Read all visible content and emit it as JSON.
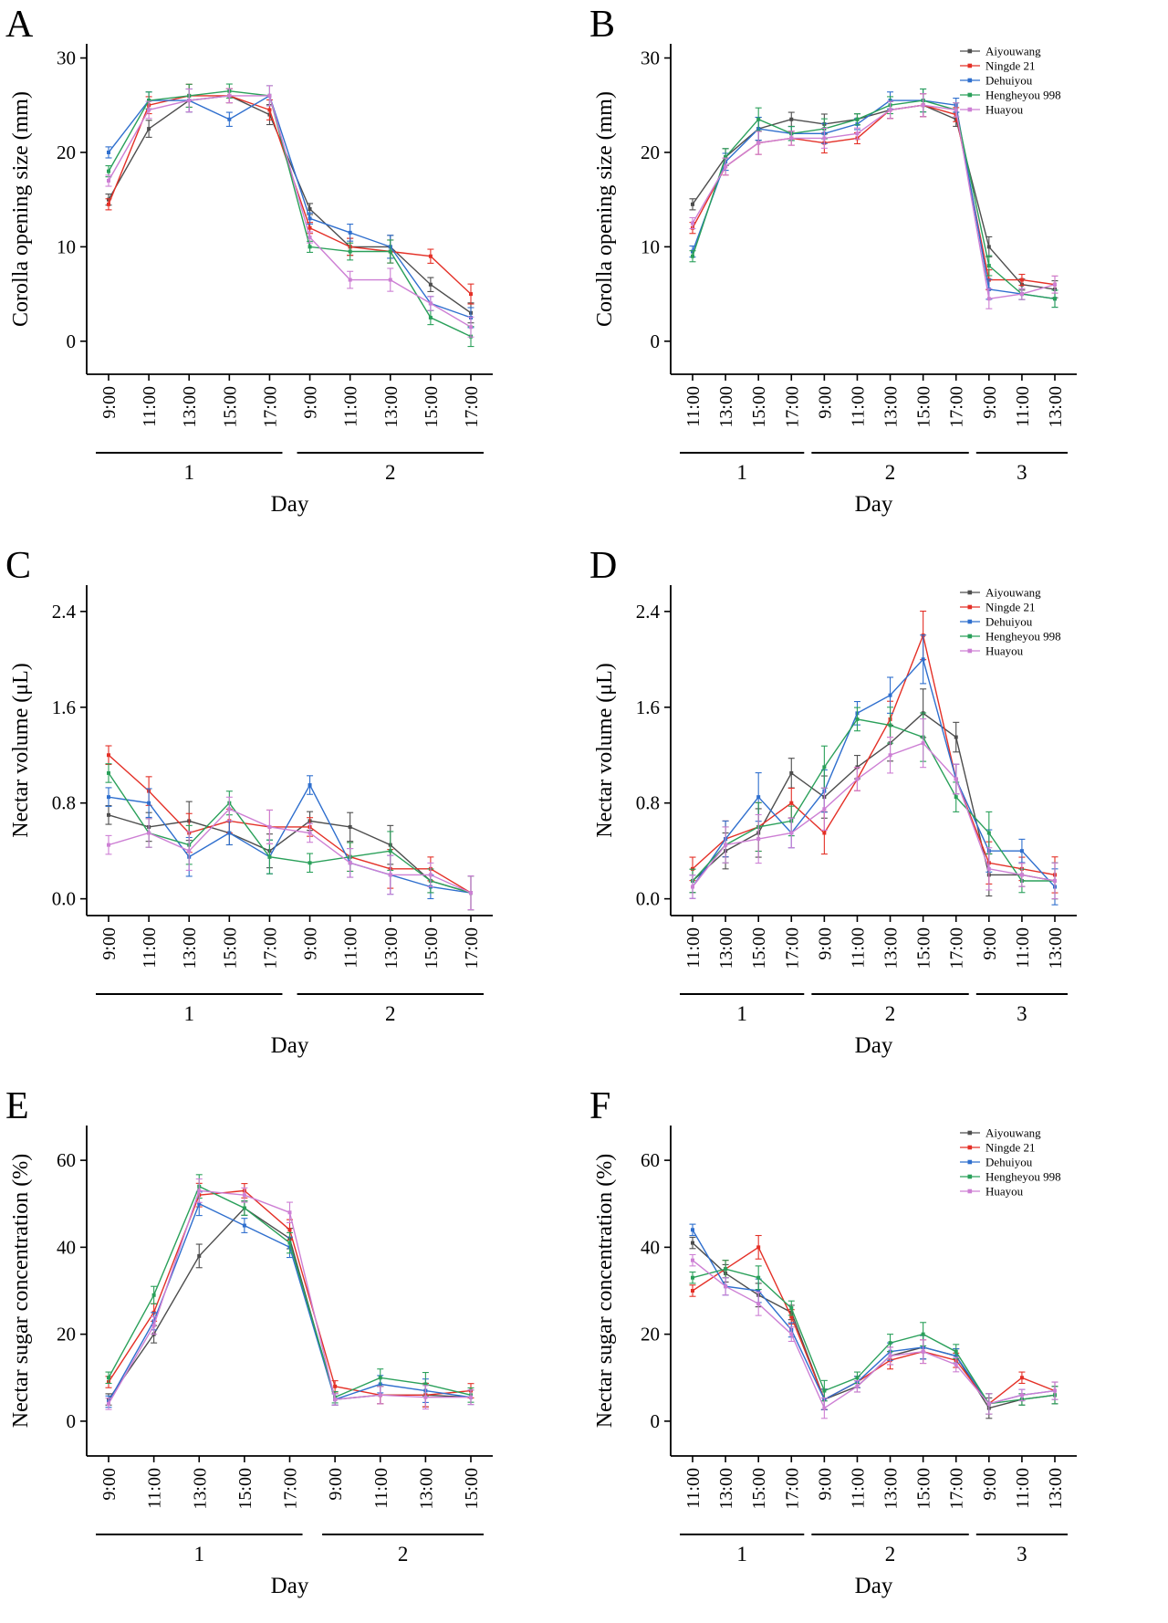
{
  "page": {
    "background": "#ffffff"
  },
  "colors": {
    "axis": "#000000",
    "series": {
      "Aiyouwang": "#4d4d4d",
      "Ningde 21": "#e43027",
      "Dehuiyou": "#2f6fce",
      "Hengheyou 998": "#2aa05a",
      "Huayou": "#cd7fd4"
    }
  },
  "legend_entries": [
    "Aiyouwang",
    "Ningde 21",
    "Dehuiyou",
    "Hengheyou 998",
    "Huayou"
  ],
  "chart_data": [
    {
      "type": "line",
      "panel_label": "A",
      "ylabel": "Corolla opening size (mm)",
      "xlabel": "Day",
      "yticks": [
        "0",
        "10",
        "20",
        "30"
      ],
      "ytick_values": [
        0,
        10,
        20,
        30
      ],
      "ylim": [
        -3.5,
        31.5
      ],
      "x_tick_labels": [
        "9:00",
        "11:00",
        "13:00",
        "15:00",
        "17:00",
        "9:00",
        "11:00",
        "13:00",
        "15:00",
        "17:00"
      ],
      "day_groups": [
        {
          "label": "1",
          "start": 0,
          "end": 4
        },
        {
          "label": "2",
          "start": 5,
          "end": 9
        }
      ],
      "legend": {
        "visible": false,
        "position": "top-right"
      },
      "error_bar_approx": 0.9,
      "series": [
        {
          "name": "Aiyouwang",
          "color": "#4d4d4d",
          "values": [
            15.0,
            22.5,
            25.5,
            26.0,
            24.0,
            14.0,
            10.0,
            10.0,
            6.0,
            3.0
          ]
        },
        {
          "name": "Ningde 21",
          "color": "#e43027",
          "values": [
            14.5,
            25.0,
            26.0,
            26.0,
            24.5,
            12.0,
            10.0,
            9.5,
            9.0,
            5.0
          ]
        },
        {
          "name": "Dehuiyou",
          "color": "#2f6fce",
          "values": [
            20.0,
            25.5,
            25.5,
            23.5,
            26.0,
            13.0,
            11.5,
            10.0,
            4.0,
            2.5
          ]
        },
        {
          "name": "Hengheyou 998",
          "color": "#2aa05a",
          "values": [
            18.0,
            25.5,
            26.0,
            26.5,
            26.0,
            10.0,
            9.5,
            9.5,
            2.5,
            0.5
          ]
        },
        {
          "name": "Huayou",
          "color": "#cd7fd4",
          "values": [
            17.0,
            24.5,
            25.5,
            26.0,
            26.0,
            11.0,
            6.5,
            6.5,
            4.0,
            1.5
          ]
        }
      ]
    },
    {
      "type": "line",
      "panel_label": "B",
      "ylabel": "Corolla opening size (mm)",
      "xlabel": "Day",
      "yticks": [
        "0",
        "10",
        "20",
        "30"
      ],
      "ytick_values": [
        0,
        10,
        20,
        30
      ],
      "ylim": [
        -3.5,
        31.5
      ],
      "x_tick_labels": [
        "11:00",
        "13:00",
        "15:00",
        "17:00",
        "9:00",
        "11:00",
        "13:00",
        "15:00",
        "17:00",
        "9:00",
        "11:00",
        "13:00"
      ],
      "day_groups": [
        {
          "label": "1",
          "start": 0,
          "end": 3
        },
        {
          "label": "2",
          "start": 4,
          "end": 8
        },
        {
          "label": "3",
          "start": 9,
          "end": 11
        }
      ],
      "legend": {
        "visible": true,
        "position": "top-right"
      },
      "error_bar_approx": 0.9,
      "series": [
        {
          "name": "Aiyouwang",
          "color": "#4d4d4d",
          "values": [
            14.5,
            19.5,
            22.5,
            23.5,
            23.0,
            23.5,
            24.5,
            25.0,
            23.5,
            10.0,
            6.0,
            5.5
          ]
        },
        {
          "name": "Ningde 21",
          "color": "#e43027",
          "values": [
            12.0,
            18.5,
            21.0,
            21.5,
            21.0,
            21.5,
            24.5,
            25.0,
            24.0,
            6.5,
            6.5,
            6.0
          ]
        },
        {
          "name": "Dehuiyou",
          "color": "#2f6fce",
          "values": [
            9.5,
            19.0,
            22.5,
            22.0,
            22.0,
            23.0,
            25.5,
            25.5,
            25.0,
            5.5,
            5.0,
            4.5
          ]
        },
        {
          "name": "Hengheyou 998",
          "color": "#2aa05a",
          "values": [
            9.0,
            19.5,
            23.5,
            22.0,
            22.5,
            23.5,
            25.0,
            25.5,
            24.5,
            8.0,
            5.0,
            4.5
          ]
        },
        {
          "name": "Huayou",
          "color": "#cd7fd4",
          "values": [
            12.5,
            18.5,
            21.0,
            21.5,
            21.5,
            22.0,
            24.5,
            25.0,
            24.5,
            4.5,
            5.0,
            6.0
          ]
        }
      ]
    },
    {
      "type": "line",
      "panel_label": "C",
      "ylabel": "Nectar volume (μL)",
      "xlabel": "Day",
      "yticks": [
        "0.0",
        "0.8",
        "1.6",
        "2.4"
      ],
      "ytick_values": [
        0.0,
        0.8,
        1.6,
        2.4
      ],
      "ylim": [
        -0.14,
        2.62
      ],
      "x_tick_labels": [
        "9:00",
        "11:00",
        "13:00",
        "15:00",
        "17:00",
        "9:00",
        "11:00",
        "13:00",
        "15:00",
        "17:00"
      ],
      "day_groups": [
        {
          "label": "1",
          "start": 0,
          "end": 4
        },
        {
          "label": "2",
          "start": 5,
          "end": 9
        }
      ],
      "legend": {
        "visible": false,
        "position": "top-right"
      },
      "error_bar_approx": 0.12,
      "series": [
        {
          "name": "Aiyouwang",
          "color": "#4d4d4d",
          "values": [
            0.7,
            0.6,
            0.65,
            0.55,
            0.4,
            0.65,
            0.6,
            0.45,
            0.15,
            0.05
          ]
        },
        {
          "name": "Ningde 21",
          "color": "#e43027",
          "values": [
            1.2,
            0.9,
            0.55,
            0.65,
            0.6,
            0.6,
            0.35,
            0.25,
            0.25,
            0.05
          ]
        },
        {
          "name": "Dehuiyou",
          "color": "#2f6fce",
          "values": [
            0.85,
            0.8,
            0.35,
            0.55,
            0.35,
            0.95,
            0.3,
            0.2,
            0.1,
            0.05
          ]
        },
        {
          "name": "Hengheyou 998",
          "color": "#2aa05a",
          "values": [
            1.05,
            0.55,
            0.45,
            0.8,
            0.35,
            0.3,
            0.35,
            0.4,
            0.15,
            0.05
          ]
        },
        {
          "name": "Huayou",
          "color": "#cd7fd4",
          "values": [
            0.45,
            0.55,
            0.4,
            0.75,
            0.6,
            0.55,
            0.3,
            0.2,
            0.2,
            0.05
          ]
        }
      ]
    },
    {
      "type": "line",
      "panel_label": "D",
      "ylabel": "Nectar volume (μL)",
      "xlabel": "Day",
      "yticks": [
        "0.0",
        "0.8",
        "1.6",
        "2.4"
      ],
      "ytick_values": [
        0.0,
        0.8,
        1.6,
        2.4
      ],
      "ylim": [
        -0.14,
        2.62
      ],
      "x_tick_labels": [
        "11:00",
        "13:00",
        "15:00",
        "17:00",
        "9:00",
        "11:00",
        "13:00",
        "15:00",
        "17:00",
        "9:00",
        "11:00",
        "13:00"
      ],
      "day_groups": [
        {
          "label": "1",
          "start": 0,
          "end": 3
        },
        {
          "label": "2",
          "start": 4,
          "end": 8
        },
        {
          "label": "3",
          "start": 9,
          "end": 11
        }
      ],
      "legend": {
        "visible": true,
        "position": "top-right"
      },
      "error_bar_approx": 0.15,
      "series": [
        {
          "name": "Aiyouwang",
          "color": "#4d4d4d",
          "values": [
            0.15,
            0.4,
            0.55,
            1.05,
            0.85,
            1.1,
            1.3,
            1.55,
            1.35,
            0.2,
            0.2,
            0.15
          ]
        },
        {
          "name": "Ningde 21",
          "color": "#e43027",
          "values": [
            0.25,
            0.5,
            0.6,
            0.8,
            0.55,
            1.0,
            1.5,
            2.2,
            1.0,
            0.3,
            0.25,
            0.2
          ]
        },
        {
          "name": "Dehuiyou",
          "color": "#2f6fce",
          "values": [
            0.1,
            0.5,
            0.85,
            0.55,
            0.9,
            1.55,
            1.7,
            2.0,
            1.0,
            0.4,
            0.4,
            0.1
          ]
        },
        {
          "name": "Hengheyou 998",
          "color": "#2aa05a",
          "values": [
            0.15,
            0.45,
            0.6,
            0.65,
            1.1,
            1.5,
            1.45,
            1.35,
            0.85,
            0.55,
            0.15,
            0.15
          ]
        },
        {
          "name": "Huayou",
          "color": "#cd7fd4",
          "values": [
            0.1,
            0.45,
            0.5,
            0.55,
            0.75,
            1.0,
            1.2,
            1.3,
            1.0,
            0.25,
            0.2,
            0.15
          ]
        }
      ]
    },
    {
      "type": "line",
      "panel_label": "E",
      "ylabel": "Nectar sugar concentration (%)",
      "xlabel": "Day",
      "yticks": [
        "0",
        "20",
        "40",
        "60"
      ],
      "ytick_values": [
        0,
        20,
        40,
        60
      ],
      "ylim": [
        -8,
        68
      ],
      "x_tick_labels": [
        "9:00",
        "11:00",
        "13:00",
        "15:00",
        "17:00",
        "9:00",
        "11:00",
        "13:00",
        "15:00"
      ],
      "day_groups": [
        {
          "label": "1",
          "start": 0,
          "end": 4
        },
        {
          "label": "2",
          "start": 5,
          "end": 8
        }
      ],
      "legend": {
        "visible": false,
        "position": "top-right"
      },
      "error_bar_approx": 2.0,
      "series": [
        {
          "name": "Aiyouwang",
          "color": "#4d4d4d",
          "values": [
            5,
            20,
            38,
            49,
            42,
            5,
            6,
            6,
            5.5
          ]
        },
        {
          "name": "Ningde 21",
          "color": "#e43027",
          "values": [
            9,
            25,
            52,
            53,
            44,
            8,
            6,
            6,
            7
          ]
        },
        {
          "name": "Dehuiyou",
          "color": "#2f6fce",
          "values": [
            4.5,
            23,
            50,
            45,
            40,
            5,
            8.5,
            7,
            5.5
          ]
        },
        {
          "name": "Hengheyou 998",
          "color": "#2aa05a",
          "values": [
            10,
            29,
            54,
            49,
            41,
            5.5,
            10,
            8.5,
            6
          ]
        },
        {
          "name": "Huayou",
          "color": "#cd7fd4",
          "values": [
            4,
            22,
            53,
            52,
            48,
            5,
            6,
            5.5,
            5.5
          ]
        }
      ]
    },
    {
      "type": "line",
      "panel_label": "F",
      "ylabel": "Nectar sugar concentration (%)",
      "xlabel": "Day",
      "yticks": [
        "0",
        "20",
        "40",
        "60"
      ],
      "ytick_values": [
        0,
        20,
        40,
        60
      ],
      "ylim": [
        -8,
        68
      ],
      "x_tick_labels": [
        "11:00",
        "13:00",
        "15:00",
        "17:00",
        "9:00",
        "11:00",
        "13:00",
        "15:00",
        "17:00",
        "9:00",
        "11:00",
        "13:00"
      ],
      "day_groups": [
        {
          "label": "1",
          "start": 0,
          "end": 3
        },
        {
          "label": "2",
          "start": 4,
          "end": 8
        },
        {
          "label": "3",
          "start": 9,
          "end": 11
        }
      ],
      "legend": {
        "visible": true,
        "position": "top-right"
      },
      "error_bar_approx": 2.0,
      "series": [
        {
          "name": "Aiyouwang",
          "color": "#4d4d4d",
          "values": [
            41,
            34,
            29,
            25,
            5,
            8,
            15,
            17,
            15,
            3,
            5,
            6
          ]
        },
        {
          "name": "Ningde 21",
          "color": "#e43027",
          "values": [
            30,
            35,
            40,
            24,
            5,
            9,
            14,
            16,
            14,
            4,
            10,
            7
          ]
        },
        {
          "name": "Dehuiyou",
          "color": "#2f6fce",
          "values": [
            44,
            31,
            30,
            21,
            5,
            9,
            16,
            17,
            15,
            4,
            6,
            7
          ]
        },
        {
          "name": "Hengheyou 998",
          "color": "#2aa05a",
          "values": [
            33,
            35,
            33,
            26,
            7,
            10,
            18,
            20,
            16,
            4,
            5,
            6
          ]
        },
        {
          "name": "Huayou",
          "color": "#cd7fd4",
          "values": [
            37,
            31,
            27,
            20,
            3,
            8,
            15,
            16,
            13,
            4,
            6,
            7
          ]
        }
      ]
    }
  ]
}
